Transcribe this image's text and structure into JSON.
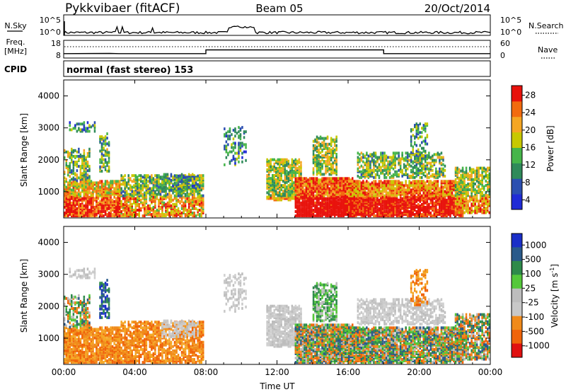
{
  "header": {
    "station": "Pykkvibaer (fitACF)",
    "beam": "Beam 05",
    "date": "20/Oct/2014"
  },
  "panel_noise": {
    "left_label": "N.Sky",
    "left_ticks": [
      "10^5",
      "10^0"
    ],
    "right_label": "N.Search",
    "right_ticks": [
      "10^5",
      "10^0"
    ]
  },
  "panel_freq": {
    "left_label_1": "Freq.",
    "left_label_2": "[MHz]",
    "left_ticks": [
      "18",
      "8"
    ],
    "right_label": "Nave",
    "right_ticks": [
      "60",
      "0"
    ]
  },
  "cpid": {
    "label": "CPID",
    "program": "normal (fast stereo) 153"
  },
  "colors": {
    "power_scale": [
      "#1f2bd6",
      "#2b4fb0",
      "#2f8a5a",
      "#46b54a",
      "#c8c800",
      "#f5a623",
      "#f26b0f",
      "#e8120c"
    ],
    "velocity_scale": [
      "#1a2fc8",
      "#2a5a8a",
      "#2e8a4a",
      "#55c83a",
      "#bdbdbd",
      "#c8c8c8",
      "#f08a1a",
      "#f0640a",
      "#e01010"
    ]
  },
  "chart_data": [
    {
      "type": "heatmap",
      "name": "power",
      "title": "",
      "xlabel": "",
      "ylabel": "Slant Range [km]",
      "xlim": [
        "00:00",
        "00:00"
      ],
      "ylim": [
        180,
        4500
      ],
      "y_ticks": [
        "1000",
        "2000",
        "3000",
        "4000"
      ],
      "colorbar": {
        "label": "Power [dB]",
        "ticks": [
          "4",
          "8",
          "12",
          "16",
          "20",
          "24",
          "28"
        ],
        "range": [
          0,
          30
        ]
      }
    },
    {
      "type": "heatmap",
      "name": "velocity",
      "title": "",
      "xlabel": "Time UT",
      "ylabel": "Slant Range [km]",
      "xlim": [
        "00:00",
        "00:00"
      ],
      "ylim": [
        180,
        4500
      ],
      "x_ticks": [
        "00:00",
        "04:00",
        "08:00",
        "12:00",
        "16:00",
        "20:00",
        "00:00"
      ],
      "y_ticks": [
        "1000",
        "2000",
        "3000",
        "4000"
      ],
      "colorbar": {
        "label": "Velocity [m s",
        "label_superscript": "-1",
        "label_close": "]",
        "ticks": [
          "1000",
          "500",
          "100",
          "25",
          "-25",
          "-100",
          "-500",
          "-1000"
        ]
      }
    }
  ]
}
